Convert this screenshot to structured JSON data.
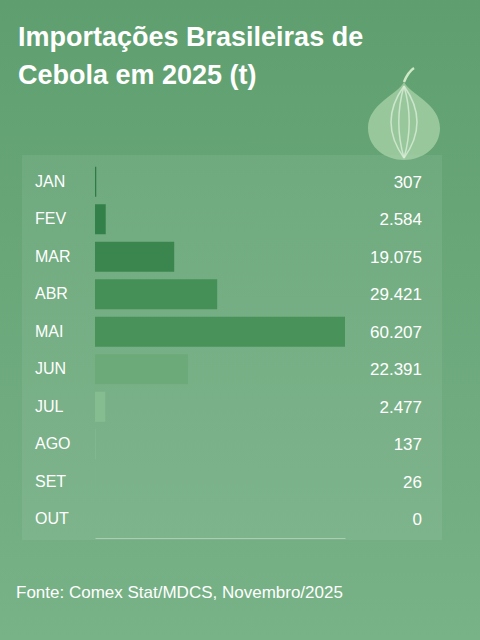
{
  "chart_data": {
    "type": "bar",
    "orientation": "horizontal",
    "title": "Importações Brasileiras de Cebola em 2025 (t)",
    "source": "Fonte: Comex Stat/MDCS, Novembro/2025",
    "categories": [
      "JAN",
      "FEV",
      "MAR",
      "ABR",
      "MAI",
      "JUN",
      "JUL",
      "AGO",
      "SET",
      "OUT"
    ],
    "values": [
      307,
      2584,
      19075,
      29421,
      60207,
      22391,
      2477,
      137,
      26,
      0
    ],
    "value_labels": [
      "307",
      "2.584",
      "19.075",
      "29.421",
      "60.207",
      "22.391",
      "2.477",
      "137",
      "26",
      "0"
    ],
    "colors": [
      "#2e7b45",
      "#34804b",
      "#3b864f",
      "#459056",
      "#49935b",
      "#6cab79",
      "#86bd90",
      "#86bd90",
      "#86bd90",
      "#86bd90"
    ],
    "xlim": [
      0,
      60207
    ],
    "data_labels": true,
    "tick_labels": false
  }
}
